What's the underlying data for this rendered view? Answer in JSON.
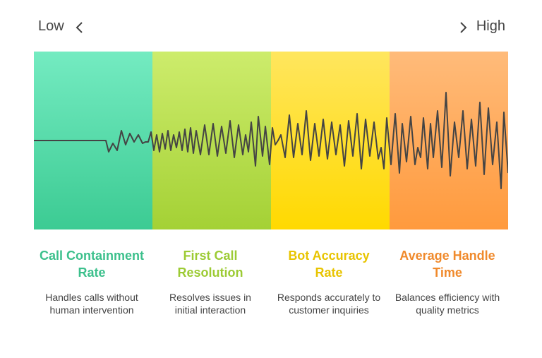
{
  "scale": {
    "low_label": "Low",
    "high_label": "High",
    "left_icon": "chevron-left-icon",
    "right_icon": "chevron-right-icon"
  },
  "colors": {
    "band_1": "#3ccb93",
    "band_2": "#a4d135",
    "band_3": "#ffd900",
    "band_4": "#ff9a3d",
    "title_1": "#3cc08c",
    "title_2": "#9ccb34",
    "title_3": "#e8c400",
    "title_4": "#f08a2c",
    "wave": "#444444"
  },
  "metrics": [
    {
      "title": "Call Containment Rate",
      "description": "Handles calls without human intervention"
    },
    {
      "title": "First Call Resolution",
      "description": "Resolves issues in initial interaction"
    },
    {
      "title": "Bot Accuracy Rate",
      "description": "Responds accurately to customer inquiries"
    },
    {
      "title": "Average Handle Time",
      "description": "Balances efficiency with quality metrics"
    }
  ]
}
